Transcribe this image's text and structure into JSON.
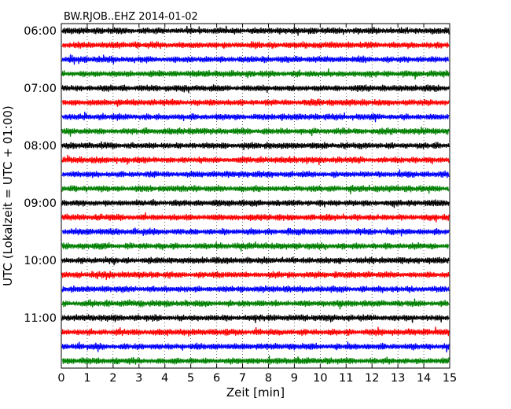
{
  "chart_data": {
    "type": "line",
    "title": "BW.RJOB..EHZ 2014-01-02",
    "xlabel": "Zeit  [min]",
    "ylabel": "UTC (Lokalzeit = UTC + 01:00)",
    "xlim": [
      0,
      15
    ],
    "x_ticks": [
      "0",
      "1",
      "2",
      "3",
      "4",
      "5",
      "6",
      "7",
      "8",
      "9",
      "10",
      "11",
      "12",
      "13",
      "14",
      "15"
    ],
    "y_ticks": [
      "06:00",
      "07:00",
      "08:00",
      "09:00",
      "10:00",
      "11:00"
    ],
    "grid": "vertical dotted",
    "trace_colors": [
      "#000000",
      "#ff0000",
      "#0000ff",
      "#008000"
    ],
    "trace_starts_utc": [
      "06:00",
      "06:15",
      "06:30",
      "06:45",
      "07:00",
      "07:15",
      "07:30",
      "07:45",
      "08:00",
      "08:15",
      "08:30",
      "08:45",
      "09:00",
      "09:15",
      "09:30",
      "09:45",
      "10:00",
      "10:15",
      "10:30",
      "10:45",
      "11:00",
      "11:15",
      "11:30",
      "11:45"
    ]
  }
}
